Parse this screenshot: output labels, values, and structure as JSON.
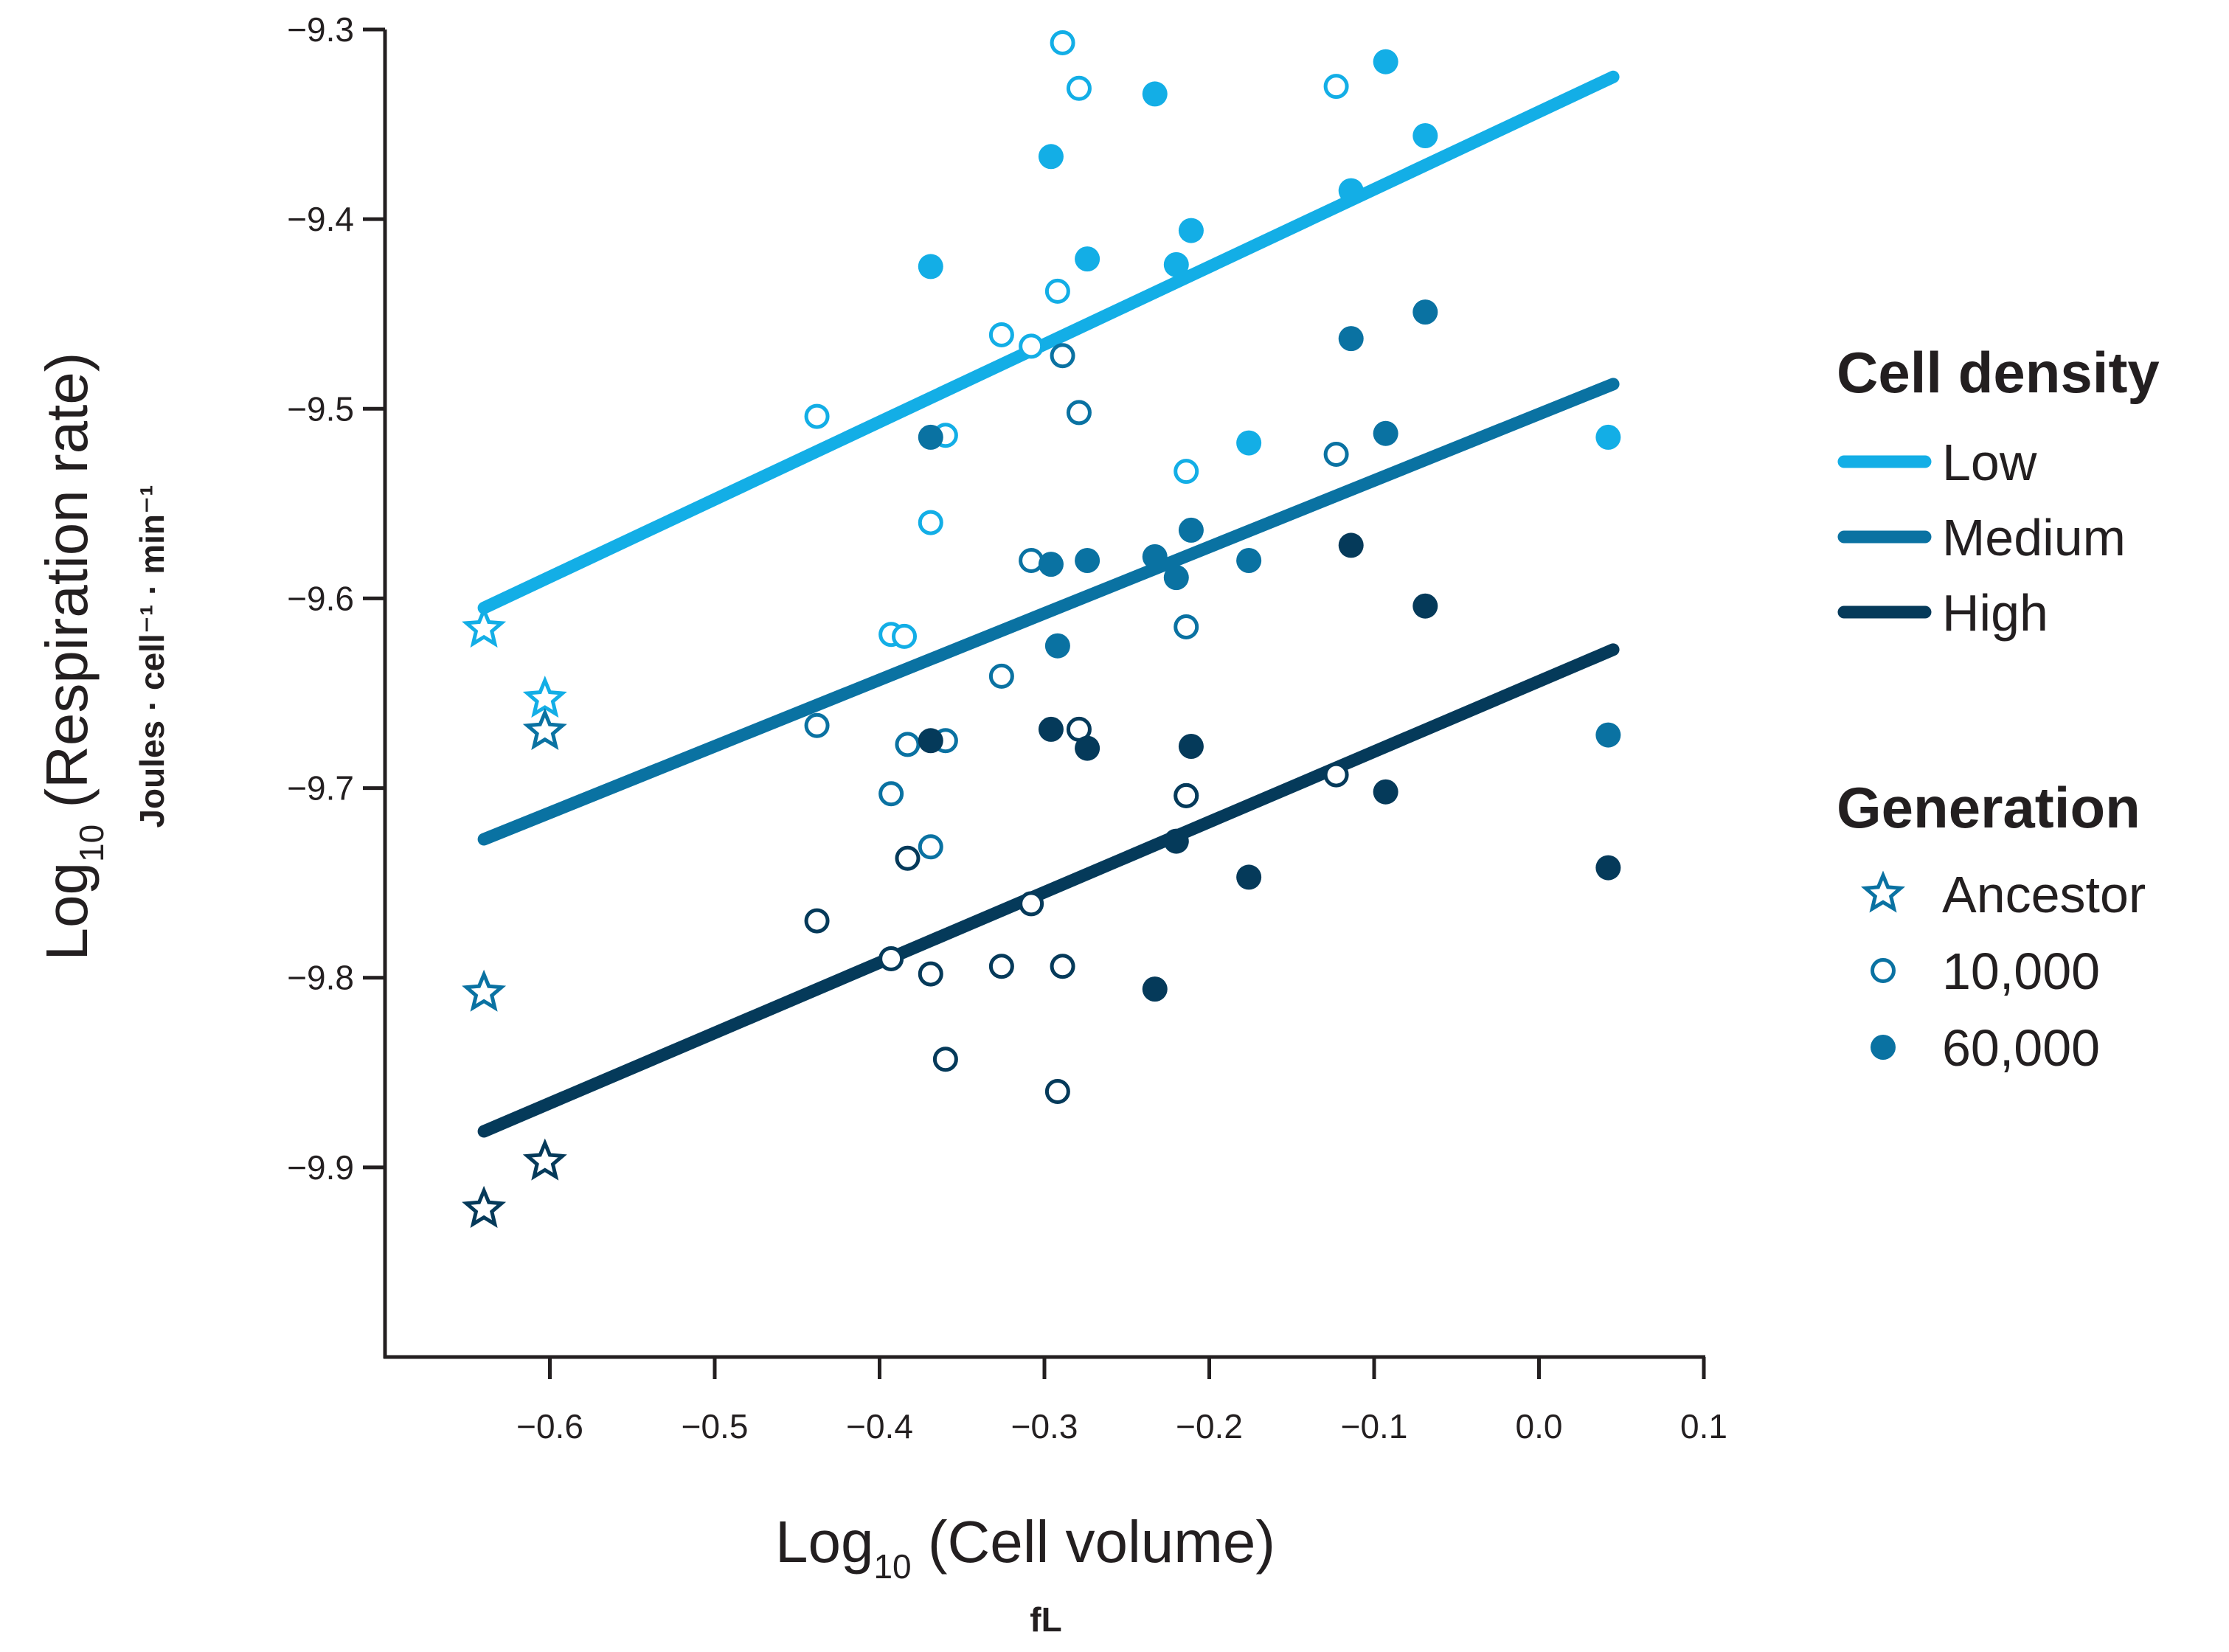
{
  "chart_data": {
    "type": "scatter",
    "xlabel": {
      "main": "Log",
      "sub": "10",
      "rest": " (Cell volume)",
      "unit": "fL"
    },
    "ylabel": {
      "main": "Log",
      "sub": "10",
      "rest": " (Respiration rate)",
      "unit": "Joules · cell⁻¹ · min⁻¹"
    },
    "xlim": [
      -0.7,
      0.1
    ],
    "ylim": [
      -10.0,
      -9.3
    ],
    "x_ticks": [
      -0.6,
      -0.5,
      -0.4,
      -0.3,
      -0.2,
      -0.1,
      0.0,
      0.1
    ],
    "x_tick_labels": [
      "−0.6",
      "−0.5",
      "−0.4",
      "−0.3",
      "−0.2",
      "−0.1",
      "0.0",
      "0.1"
    ],
    "y_ticks": [
      -9.3,
      -9.4,
      -9.5,
      -9.6,
      -9.7,
      -9.8,
      -9.9
    ],
    "y_tick_labels": [
      "−9.3",
      "−9.4",
      "−9.5",
      "−9.6",
      "−9.7",
      "−9.8",
      "−9.9"
    ],
    "grid": false,
    "legend_position": "right",
    "colors": {
      "Low": "#13aee6",
      "Medium": "#0a72a2",
      "High": "#053a5a"
    },
    "legend": {
      "density_title": "Cell density",
      "density_items": [
        {
          "key": "Low",
          "label": "Low"
        },
        {
          "key": "Medium",
          "label": "Medium"
        },
        {
          "key": "High",
          "label": "High"
        }
      ],
      "generation_title": "Generation",
      "generation_items": [
        {
          "marker": "star",
          "label": "Ancestor"
        },
        {
          "marker": "open",
          "label": "10,000"
        },
        {
          "marker": "filled",
          "label": "60,000"
        }
      ],
      "generation_marker_color": "#0a72a2"
    },
    "fit_lines": [
      {
        "density": "Low",
        "x": [
          -0.64,
          0.045
        ],
        "y": [
          -9.605,
          -9.325
        ]
      },
      {
        "density": "Medium",
        "x": [
          -0.64,
          0.045
        ],
        "y": [
          -9.727,
          -9.487
        ]
      },
      {
        "density": "High",
        "x": [
          -0.64,
          0.045
        ],
        "y": [
          -9.881,
          -9.627
        ]
      }
    ],
    "series": [
      {
        "density": "Low",
        "generation": "Ancestor",
        "marker": "star",
        "points": [
          [
            -0.64,
            -9.616
          ],
          [
            -0.603,
            -9.653
          ]
        ]
      },
      {
        "density": "Low",
        "generation": "10,000",
        "marker": "open",
        "points": [
          [
            -0.289,
            -9.307
          ],
          [
            -0.279,
            -9.331
          ],
          [
            -0.123,
            -9.33
          ],
          [
            -0.292,
            -9.438
          ],
          [
            -0.326,
            -9.461
          ],
          [
            -0.308,
            -9.467
          ],
          [
            -0.438,
            -9.504
          ],
          [
            -0.36,
            -9.514
          ],
          [
            -0.214,
            -9.533
          ],
          [
            -0.369,
            -9.56
          ],
          [
            -0.393,
            -9.619
          ],
          [
            -0.385,
            -9.62
          ]
        ]
      },
      {
        "density": "Low",
        "generation": "60,000",
        "marker": "filled",
        "points": [
          [
            -0.093,
            -9.317
          ],
          [
            -0.233,
            -9.334
          ],
          [
            -0.069,
            -9.356
          ],
          [
            -0.296,
            -9.367
          ],
          [
            -0.114,
            -9.385
          ],
          [
            -0.211,
            -9.406
          ],
          [
            -0.274,
            -9.421
          ],
          [
            -0.22,
            -9.424
          ],
          [
            -0.369,
            -9.425
          ],
          [
            -0.176,
            -9.518
          ],
          [
            0.042,
            -9.515
          ]
        ]
      },
      {
        "density": "Medium",
        "generation": "Ancestor",
        "marker": "star",
        "points": [
          [
            -0.603,
            -9.67
          ],
          [
            -0.64,
            -9.808
          ]
        ]
      },
      {
        "density": "Medium",
        "generation": "10,000",
        "marker": "open",
        "points": [
          [
            -0.289,
            -9.472
          ],
          [
            -0.279,
            -9.502
          ],
          [
            -0.123,
            -9.524
          ],
          [
            -0.308,
            -9.58
          ],
          [
            -0.214,
            -9.615
          ],
          [
            -0.326,
            -9.641
          ],
          [
            -0.438,
            -9.667
          ],
          [
            -0.36,
            -9.675
          ],
          [
            -0.383,
            -9.677
          ],
          [
            -0.393,
            -9.703
          ],
          [
            -0.214,
            -9.704
          ],
          [
            -0.369,
            -9.731
          ]
        ]
      },
      {
        "density": "Medium",
        "generation": "60,000",
        "marker": "filled",
        "points": [
          [
            -0.069,
            -9.449
          ],
          [
            -0.114,
            -9.463
          ],
          [
            -0.369,
            -9.515
          ],
          [
            -0.093,
            -9.513
          ],
          [
            -0.211,
            -9.564
          ],
          [
            -0.296,
            -9.582
          ],
          [
            -0.274,
            -9.58
          ],
          [
            -0.233,
            -9.578
          ],
          [
            -0.176,
            -9.58
          ],
          [
            -0.22,
            -9.589
          ],
          [
            -0.292,
            -9.625
          ],
          [
            0.042,
            -9.672
          ]
        ]
      },
      {
        "density": "High",
        "generation": "Ancestor",
        "marker": "star",
        "points": [
          [
            -0.603,
            -9.897
          ],
          [
            -0.64,
            -9.922
          ]
        ]
      },
      {
        "density": "High",
        "generation": "10,000",
        "marker": "open",
        "points": [
          [
            -0.279,
            -9.669
          ],
          [
            -0.123,
            -9.693
          ],
          [
            -0.214,
            -9.704
          ],
          [
            -0.383,
            -9.737
          ],
          [
            -0.308,
            -9.761
          ],
          [
            -0.438,
            -9.77
          ],
          [
            -0.393,
            -9.79
          ],
          [
            -0.326,
            -9.794
          ],
          [
            -0.289,
            -9.794
          ],
          [
            -0.369,
            -9.798
          ],
          [
            -0.36,
            -9.843
          ],
          [
            -0.292,
            -9.86
          ]
        ]
      },
      {
        "density": "High",
        "generation": "60,000",
        "marker": "filled",
        "points": [
          [
            -0.114,
            -9.572
          ],
          [
            -0.069,
            -9.604
          ],
          [
            -0.369,
            -9.675
          ],
          [
            -0.296,
            -9.669
          ],
          [
            -0.274,
            -9.679
          ],
          [
            -0.211,
            -9.678
          ],
          [
            -0.093,
            -9.702
          ],
          [
            -0.22,
            -9.728
          ],
          [
            -0.176,
            -9.747
          ],
          [
            -0.233,
            -9.806
          ],
          [
            0.042,
            -9.742
          ]
        ]
      }
    ]
  }
}
